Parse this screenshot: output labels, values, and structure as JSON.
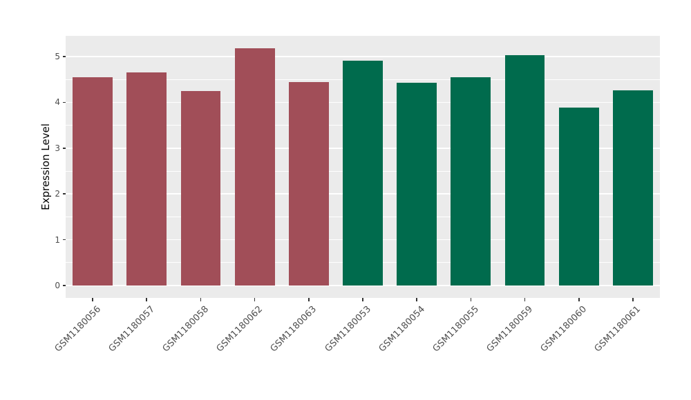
{
  "chart_data": {
    "type": "bar",
    "title": "",
    "ylabel": "Expression Level",
    "categories": [
      "GSM1180056",
      "GSM1180057",
      "GSM1180058",
      "GSM1180062",
      "GSM1180063",
      "GSM1180053",
      "GSM1180054",
      "GSM1180055",
      "GSM1180059",
      "GSM1180060",
      "GSM1180061"
    ],
    "values": [
      4.55,
      4.65,
      4.24,
      5.18,
      4.44,
      4.91,
      4.42,
      4.55,
      5.03,
      3.88,
      4.26
    ],
    "bar_groups": [
      "group1",
      "group1",
      "group1",
      "group1",
      "group1",
      "group2",
      "group2",
      "group2",
      "group2",
      "group2",
      "group2"
    ],
    "group_colors": {
      "group1": "#A14E58",
      "group2": "#006B4D"
    },
    "yticks": [
      0,
      1,
      2,
      3,
      4,
      5
    ],
    "ylim": [
      -0.27,
      5.45
    ],
    "panel_bg": "#EBEBEB",
    "grid_color": "#FFFFFF",
    "tick_color": "#333333",
    "label_color": "#4D4D4D",
    "bar_width_fraction": 0.74,
    "legend_position": "none",
    "grid": "horizontal-only"
  }
}
